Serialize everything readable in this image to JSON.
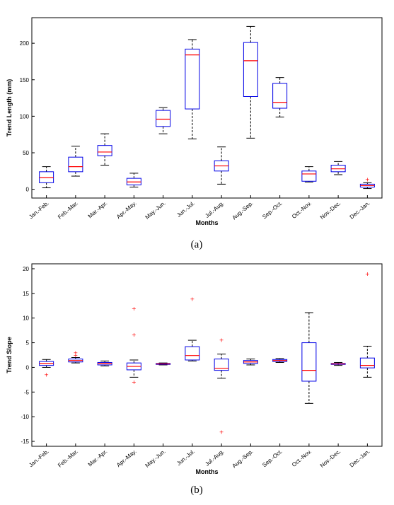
{
  "chart_data": [
    {
      "type": "boxplot",
      "caption": "(a)",
      "xlabel": "Months",
      "ylabel": "Trend Length (mm)",
      "ylim": [
        -12,
        235
      ],
      "yticks": [
        0,
        50,
        100,
        150,
        200
      ],
      "categories": [
        "Jan.-Feb.",
        "Feb.-Mar.",
        "Mar.-Apr.",
        "Apr.-May.",
        "May.-Jun.",
        "Jun.-Jul.",
        "Jul.-Aug.",
        "Aug.-Sep.",
        "Sep.-Oct.",
        "Oct.-Nov.",
        "Nov.-Dec.",
        "Dec.-Jan."
      ],
      "boxes": [
        {
          "whisker_low": 2,
          "q1": 9,
          "median": 16,
          "q3": 24,
          "whisker_high": 31,
          "outliers": []
        },
        {
          "whisker_low": 18,
          "q1": 24,
          "median": 31,
          "q3": 44,
          "whisker_high": 59,
          "outliers": []
        },
        {
          "whisker_low": 33,
          "q1": 46,
          "median": 51,
          "q3": 60,
          "whisker_high": 76,
          "outliers": []
        },
        {
          "whisker_low": 3,
          "q1": 6,
          "median": 10,
          "q3": 15,
          "whisker_high": 22,
          "outliers": []
        },
        {
          "whisker_low": 76,
          "q1": 86,
          "median": 96,
          "q3": 108,
          "whisker_high": 112,
          "outliers": []
        },
        {
          "whisker_low": 69,
          "q1": 110,
          "median": 184,
          "q3": 192,
          "whisker_high": 205,
          "outliers": []
        },
        {
          "whisker_low": 7,
          "q1": 25,
          "median": 32,
          "q3": 39,
          "whisker_high": 58,
          "outliers": []
        },
        {
          "whisker_low": 70,
          "q1": 127,
          "median": 176,
          "q3": 201,
          "whisker_high": 223,
          "outliers": []
        },
        {
          "whisker_low": 99,
          "q1": 111,
          "median": 119,
          "q3": 145,
          "whisker_high": 153,
          "outliers": []
        },
        {
          "whisker_low": 10,
          "q1": 11,
          "median": 21,
          "q3": 25,
          "whisker_high": 31,
          "outliers": []
        },
        {
          "whisker_low": 20,
          "q1": 24,
          "median": 28,
          "q3": 33,
          "whisker_high": 38,
          "outliers": []
        },
        {
          "whisker_low": 1,
          "q1": 3,
          "median": 5,
          "q3": 7,
          "whisker_high": 9,
          "outliers": [
            13
          ]
        }
      ]
    },
    {
      "type": "boxplot",
      "caption": "(b)",
      "xlabel": "Months",
      "ylabel": "Trend Slope",
      "ylim": [
        -16,
        21
      ],
      "yticks": [
        -15,
        -10,
        -5,
        0,
        5,
        10,
        15,
        20
      ],
      "categories": [
        "Jan.-Feb.",
        "Feb.-Mar.",
        "Mar.-Apr.",
        "Apr.-May.",
        "May.-Jun.",
        "Jun.-Jul.",
        "Jul.-Aug.",
        "Aug.-Sep.",
        "Sep.-Oct.",
        "Oct.-Nov.",
        "Nov.-Dec.",
        "Dec.-Jan."
      ],
      "boxes": [
        {
          "whisker_low": 0.0,
          "q1": 0.4,
          "median": 0.8,
          "q3": 1.2,
          "whisker_high": 1.6,
          "outliers": [
            -1.5
          ]
        },
        {
          "whisker_low": 0.9,
          "q1": 1.1,
          "median": 1.4,
          "q3": 1.7,
          "whisker_high": 2.0,
          "outliers": [
            2.4,
            2.9
          ]
        },
        {
          "whisker_low": 0.3,
          "q1": 0.5,
          "median": 0.8,
          "q3": 1.0,
          "whisker_high": 1.3,
          "outliers": []
        },
        {
          "whisker_low": -2.0,
          "q1": -0.5,
          "median": 0.2,
          "q3": 0.9,
          "whisker_high": 1.5,
          "outliers": [
            -3.0,
            6.6,
            11.9
          ]
        },
        {
          "whisker_low": 0.5,
          "q1": 0.6,
          "median": 0.7,
          "q3": 0.8,
          "whisker_high": 0.9,
          "outliers": []
        },
        {
          "whisker_low": 1.3,
          "q1": 1.5,
          "median": 2.4,
          "q3": 4.2,
          "whisker_high": 5.5,
          "outliers": [
            13.8
          ]
        },
        {
          "whisker_low": -2.2,
          "q1": -0.6,
          "median": -0.2,
          "q3": 1.7,
          "whisker_high": 2.7,
          "outliers": [
            -13.1,
            5.5
          ]
        },
        {
          "whisker_low": 0.5,
          "q1": 0.8,
          "median": 1.1,
          "q3": 1.4,
          "whisker_high": 1.7,
          "outliers": []
        },
        {
          "whisker_low": 1.0,
          "q1": 1.2,
          "median": 1.4,
          "q3": 1.6,
          "whisker_high": 1.8,
          "outliers": []
        },
        {
          "whisker_low": -7.3,
          "q1": -2.8,
          "median": -0.6,
          "q3": 5.0,
          "whisker_high": 11.1,
          "outliers": []
        },
        {
          "whisker_low": 0.4,
          "q1": 0.6,
          "median": 0.7,
          "q3": 0.8,
          "whisker_high": 1.0,
          "outliers": []
        },
        {
          "whisker_low": -2.0,
          "q1": -0.1,
          "median": 0.4,
          "q3": 1.9,
          "whisker_high": 4.3,
          "outliers": [
            18.9
          ]
        }
      ]
    }
  ],
  "colors": {
    "box": "#0000e6",
    "median": "#ff0000",
    "whisker": "#000000",
    "outlier": "#ff0000"
  }
}
